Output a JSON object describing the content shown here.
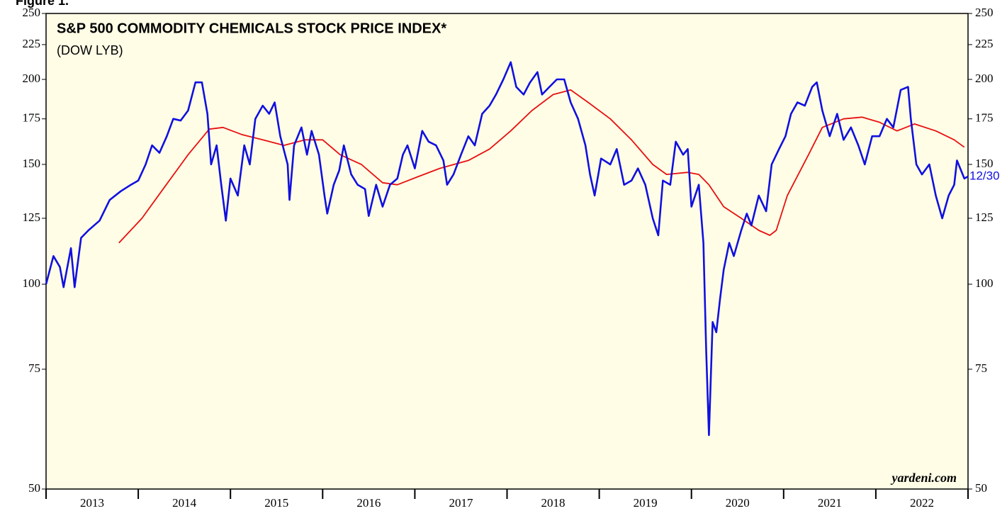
{
  "chart_data": {
    "type": "line",
    "figure_label": "Figure 1.",
    "title": "S&P 500 COMMODITY CHEMICALS STOCK PRICE INDEX*",
    "subtitle": "(DOW LYB)",
    "source": "yardeni.com",
    "end_label": "12/30",
    "ylog": true,
    "ylim": [
      50,
      250
    ],
    "yticks": [
      50,
      75,
      100,
      125,
      150,
      175,
      200,
      225,
      250
    ],
    "xlim": [
      2013,
      2023
    ],
    "xticks": [
      2013,
      2014,
      2015,
      2016,
      2017,
      2018,
      2019,
      2020,
      2021,
      2022,
      2023
    ],
    "x_labels": [
      "2013",
      "2014",
      "2015",
      "2016",
      "2017",
      "2018",
      "2019",
      "2020",
      "2021",
      "2022"
    ],
    "background": "#fffde6",
    "series": [
      {
        "color": "#1010e0",
        "x": [
          2013.0,
          2013.08,
          2013.15,
          2013.19,
          2013.27,
          2013.31,
          2013.38,
          2013.46,
          2013.58,
          2013.69,
          2013.81,
          2013.92,
          2014.0,
          2014.08,
          2014.15,
          2014.23,
          2014.31,
          2014.38,
          2014.46,
          2014.54,
          2014.62,
          2014.69,
          2014.75,
          2014.79,
          2014.85,
          2014.9,
          2014.95,
          2015.0,
          2015.08,
          2015.15,
          2015.21,
          2015.27,
          2015.35,
          2015.42,
          2015.48,
          2015.54,
          2015.62,
          2015.64,
          2015.69,
          2015.77,
          2015.83,
          2015.88,
          2015.96,
          2016.02,
          2016.05,
          2016.12,
          2016.18,
          2016.23,
          2016.31,
          2016.38,
          2016.46,
          2016.5,
          2016.58,
          2016.65,
          2016.73,
          2016.81,
          2016.87,
          2016.92,
          2017.0,
          2017.08,
          2017.15,
          2017.23,
          2017.31,
          2017.35,
          2017.42,
          2017.5,
          2017.58,
          2017.65,
          2017.73,
          2017.81,
          2017.88,
          2017.96,
          2018.04,
          2018.1,
          2018.18,
          2018.25,
          2018.33,
          2018.38,
          2018.46,
          2018.54,
          2018.62,
          2018.69,
          2018.77,
          2018.85,
          2018.9,
          2018.95,
          2019.02,
          2019.12,
          2019.19,
          2019.27,
          2019.35,
          2019.42,
          2019.5,
          2019.58,
          2019.64,
          2019.69,
          2019.77,
          2019.83,
          2019.91,
          2019.96,
          2020.0,
          2020.08,
          2020.13,
          2020.16,
          2020.19,
          2020.23,
          2020.27,
          2020.31,
          2020.35,
          2020.41,
          2020.46,
          2020.54,
          2020.6,
          2020.65,
          2020.73,
          2020.81,
          2020.87,
          2020.95,
          2021.02,
          2021.08,
          2021.15,
          2021.23,
          2021.31,
          2021.36,
          2021.42,
          2021.5,
          2021.58,
          2021.65,
          2021.73,
          2021.81,
          2021.88,
          2021.96,
          2022.04,
          2022.12,
          2022.19,
          2022.27,
          2022.35,
          2022.38,
          2022.44,
          2022.5,
          2022.58,
          2022.65,
          2022.72,
          2022.79,
          2022.85,
          2022.88,
          2022.96,
          2023.0
        ],
        "values": [
          100,
          110,
          106,
          99,
          113,
          99,
          117,
          120,
          124,
          133,
          137,
          140,
          142,
          150,
          160,
          156,
          165,
          175,
          174,
          180,
          198,
          198,
          178,
          150,
          160,
          140,
          124,
          143,
          135,
          160,
          150,
          175,
          183,
          178,
          185,
          165,
          150,
          133,
          160,
          170,
          155,
          168,
          155,
          135,
          127,
          140,
          147,
          160,
          145,
          140,
          138,
          126,
          140,
          130,
          140,
          143,
          155,
          160,
          148,
          168,
          162,
          160,
          152,
          140,
          145,
          155,
          165,
          160,
          178,
          183,
          190,
          200,
          212,
          195,
          190,
          198,
          205,
          190,
          195,
          200,
          200,
          185,
          175,
          160,
          145,
          135,
          153,
          150,
          158,
          140,
          142,
          148,
          140,
          125,
          118,
          142,
          140,
          162,
          155,
          158,
          130,
          140,
          115,
          80,
          60,
          88,
          85,
          95,
          105,
          115,
          110,
          120,
          127,
          122,
          135,
          128,
          150,
          158,
          165,
          178,
          185,
          183,
          195,
          198,
          180,
          165,
          178,
          163,
          170,
          160,
          150,
          165,
          165,
          175,
          170,
          193,
          195,
          175,
          150,
          145,
          150,
          135,
          125,
          135,
          140,
          152,
          143,
          144
        ]
      },
      {
        "color": "#e81010",
        "x": [
          2013.79,
          2014.04,
          2014.27,
          2014.54,
          2014.77,
          2014.92,
          2015.12,
          2015.35,
          2015.58,
          2015.81,
          2016.0,
          2016.19,
          2016.42,
          2016.65,
          2016.81,
          2017.04,
          2017.27,
          2017.58,
          2017.81,
          2018.04,
          2018.27,
          2018.5,
          2018.69,
          2018.88,
          2019.12,
          2019.35,
          2019.58,
          2019.73,
          2019.96,
          2020.08,
          2020.19,
          2020.35,
          2020.54,
          2020.73,
          2020.85,
          2020.92,
          2021.04,
          2021.27,
          2021.42,
          2021.65,
          2021.85,
          2022.04,
          2022.23,
          2022.42,
          2022.65,
          2022.85,
          2022.96
        ],
        "values": [
          115,
          125,
          138,
          155,
          169,
          170,
          166,
          163,
          160,
          163,
          163,
          155,
          150,
          141,
          140,
          144,
          148,
          152,
          158,
          168,
          180,
          190,
          193,
          185,
          175,
          163,
          150,
          145,
          146,
          145,
          140,
          130,
          125,
          120,
          118,
          120,
          135,
          155,
          170,
          175,
          176,
          173,
          168,
          172,
          168,
          163,
          159
        ]
      }
    ]
  }
}
